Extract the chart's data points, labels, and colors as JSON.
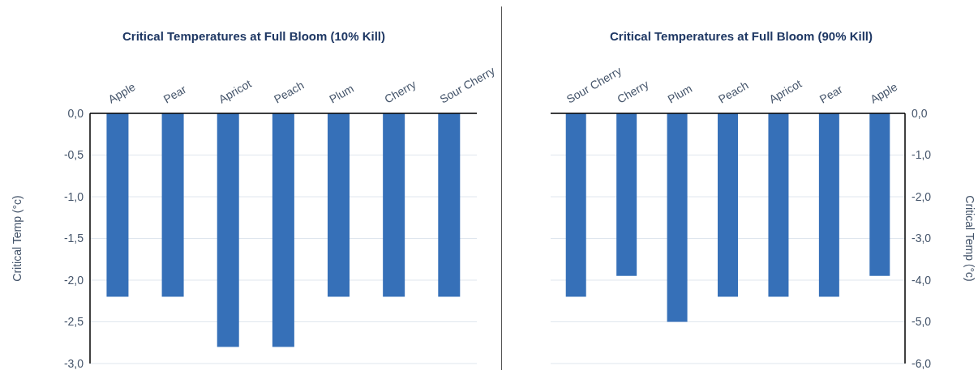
{
  "chart_data": [
    {
      "type": "bar",
      "title": "Critical Temperatures at Full Bloom (10% Kill)",
      "categories": [
        "Apple",
        "Pear",
        "Apricot",
        "Peach",
        "Plum",
        "Cherry",
        "Sour Cherry"
      ],
      "ylabel": "Critical Temp (°c)",
      "series": [
        {
          "color": "#3670b8",
          "values": [
            -2.2,
            -2.2,
            -2.8,
            -2.8,
            -2.2,
            -2.2,
            -2.2
          ]
        }
      ],
      "ylim": [
        -3,
        0
      ],
      "yticks": [
        {
          "value": 0,
          "label": "0,0"
        },
        {
          "value": -0.5,
          "label": "-0,5"
        },
        {
          "value": -1,
          "label": "-1,0"
        },
        {
          "value": -1.5,
          "label": "-1,5"
        },
        {
          "value": -2,
          "label": "-2,0"
        },
        {
          "value": -2.5,
          "label": "-2,5"
        },
        {
          "value": -3,
          "label": "-3,0"
        }
      ],
      "grid": "y",
      "legend": false
    },
    {
      "type": "bar",
      "title": "Critical Temperatures at Full Bloom (90% Kill)",
      "categories": [
        "Sour Cherry",
        "Cherry",
        "Plum",
        "Peach",
        "Apricot",
        "Pear",
        "Apple"
      ],
      "y2label": "Critical Temp (°c)",
      "series": [
        {
          "color": "#3670b8",
          "axis": "y2",
          "values": [
            -4.4,
            -3.9,
            -5.0,
            -4.4,
            -4.4,
            -4.4,
            -3.9
          ]
        }
      ],
      "y2lim": [
        -6,
        0
      ],
      "y2ticks": [
        {
          "value": 0,
          "label": "0,0"
        },
        {
          "value": -1,
          "label": "-1,0"
        },
        {
          "value": -2,
          "label": "-2,0"
        },
        {
          "value": -3,
          "label": "-3,0"
        },
        {
          "value": -4,
          "label": "-4,0"
        },
        {
          "value": -5,
          "label": "-5,0"
        },
        {
          "value": -6,
          "label": "-6,0"
        }
      ],
      "grid": "y",
      "legend": false
    }
  ]
}
